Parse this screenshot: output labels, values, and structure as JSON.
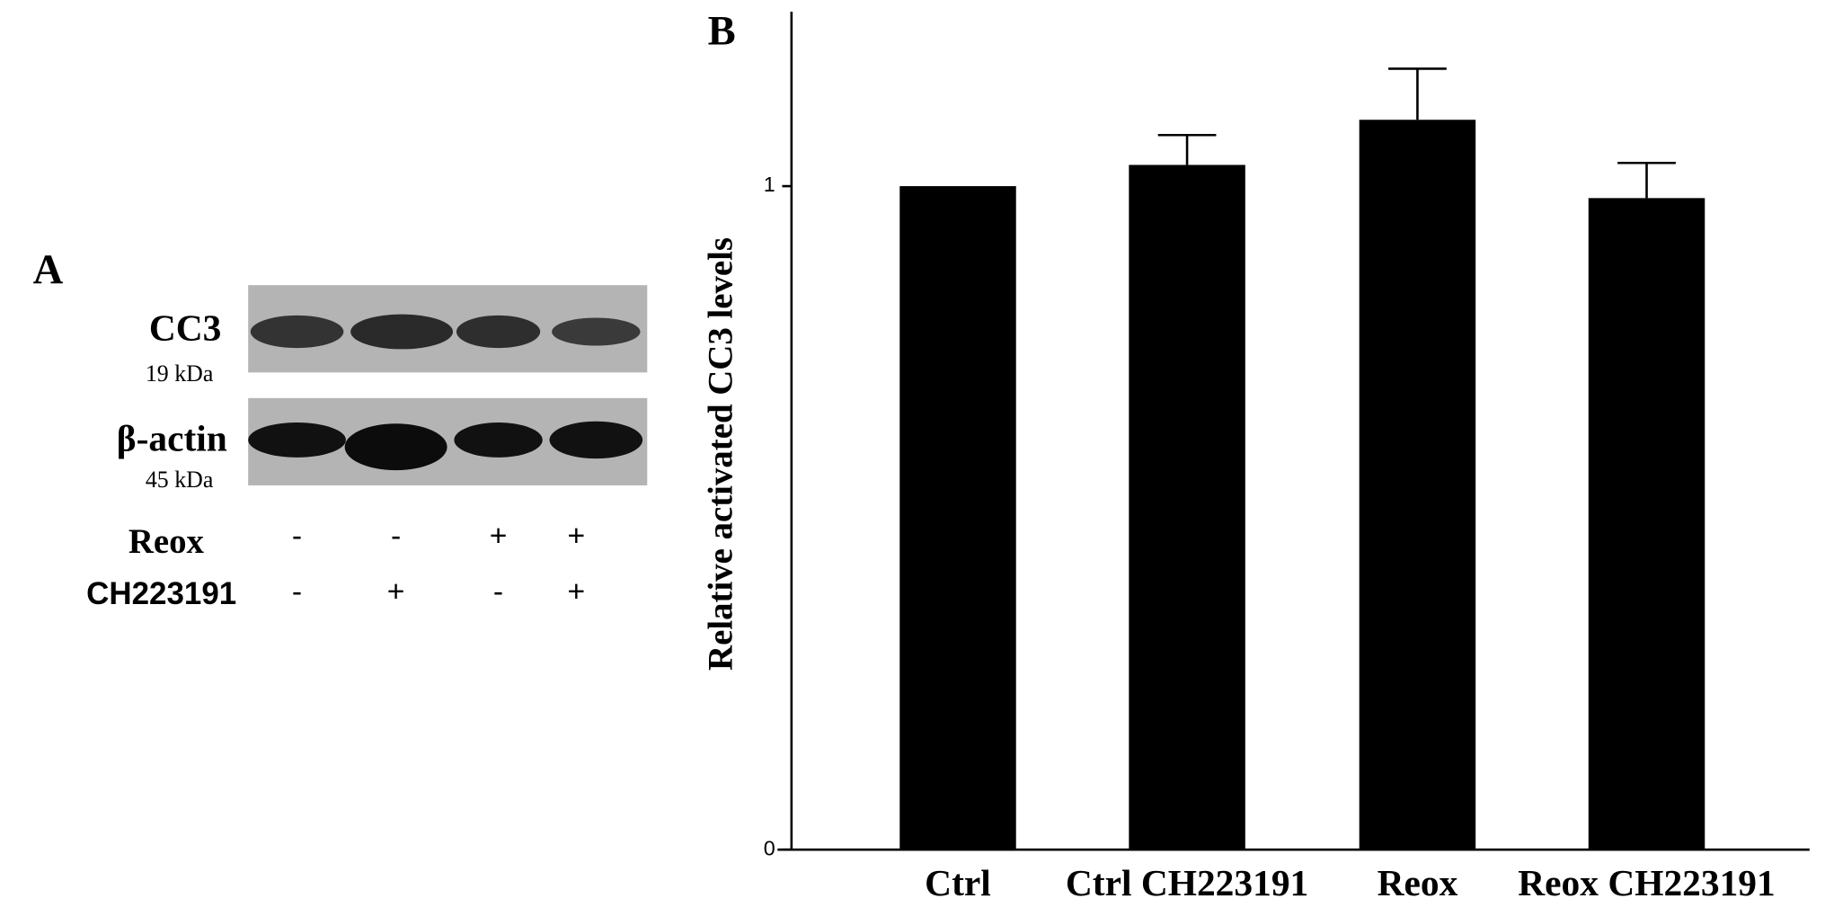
{
  "panel_a": {
    "label": "A",
    "blot": [
      {
        "name": "CC3",
        "size": "19 kDa"
      },
      {
        "name": "β-actin",
        "size": "45 kDa"
      }
    ],
    "treatments": [
      {
        "name": "Reox",
        "signs": [
          "-",
          "-",
          "+",
          "+"
        ]
      },
      {
        "name": "CH223191",
        "signs": [
          "-",
          "+",
          "-",
          "+"
        ]
      }
    ]
  },
  "chart_data": {
    "type": "bar",
    "panel_label": "B",
    "y_label": "Relative activated CC3 levels",
    "categories": [
      "Ctrl",
      "Ctrl CH223191",
      "Reox",
      "Reox CH223191"
    ],
    "values": [
      1.0,
      1.032,
      1.1,
      0.982
    ],
    "errors": [
      0,
      0.045,
      0.077,
      0.053
    ],
    "color": "#000000",
    "ylim": [
      0,
      1.263
    ],
    "yticks": [
      0,
      1
    ]
  }
}
